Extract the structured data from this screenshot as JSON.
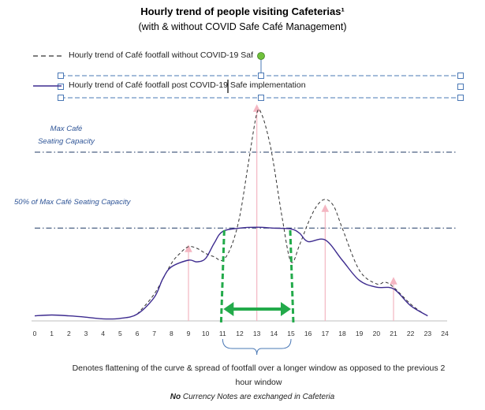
{
  "chart_data": {
    "type": "line",
    "title": "Hourly trend of people visiting Cafeterias¹",
    "subtitle": "(with & without COVID Safe Café Management)",
    "xlabel": "",
    "ylabel": "",
    "x": [
      0,
      1,
      2,
      3,
      4,
      5,
      6,
      7,
      8,
      9,
      10,
      11,
      12,
      13,
      14,
      15,
      16,
      17,
      18,
      19,
      20,
      21,
      22,
      23,
      24
    ],
    "xticks": [
      "0",
      "1",
      "2",
      "3",
      "4",
      "5",
      "6",
      "7",
      "8",
      "9",
      "10",
      "11",
      "12",
      "13",
      "14",
      "15",
      "16",
      "17",
      "18",
      "19",
      "20",
      "21",
      "22",
      "23",
      "24"
    ],
    "series": [
      {
        "name": "Hourly trend of Café footfall without  COVID-19 Saf",
        "style": "dashed",
        "color": "#333333",
        "points": [
          [
            6,
            0.04
          ],
          [
            7,
            0.16
          ],
          [
            8,
            0.34
          ],
          [
            8.5,
            0.4
          ],
          [
            9,
            0.44
          ],
          [
            9.5,
            0.43
          ],
          [
            10,
            0.4
          ],
          [
            10.5,
            0.38
          ],
          [
            11,
            0.36
          ],
          [
            11.5,
            0.44
          ],
          [
            12,
            0.62
          ],
          [
            12.5,
            0.93
          ],
          [
            13,
            1.23
          ],
          [
            13.3,
            1.22
          ],
          [
            13.7,
            1.08
          ],
          [
            14,
            0.92
          ],
          [
            14.5,
            0.6
          ],
          [
            15,
            0.35
          ],
          [
            15.5,
            0.45
          ],
          [
            16,
            0.58
          ],
          [
            16.5,
            0.68
          ],
          [
            17,
            0.72
          ],
          [
            17.5,
            0.68
          ],
          [
            18,
            0.55
          ],
          [
            19,
            0.3
          ],
          [
            20,
            0.22
          ],
          [
            20.5,
            0.23
          ],
          [
            21,
            0.2
          ],
          [
            22,
            0.1
          ],
          [
            22.8,
            0.04
          ]
        ]
      },
      {
        "name": "Hourly trend of Café footfall post COVID-19 Safe implementation",
        "style": "solid",
        "color": "#3d2b8f",
        "points": [
          [
            0,
            0.03
          ],
          [
            1,
            0.035
          ],
          [
            2,
            0.03
          ],
          [
            3,
            0.022
          ],
          [
            4,
            0.012
          ],
          [
            5,
            0.015
          ],
          [
            6,
            0.04
          ],
          [
            7,
            0.14
          ],
          [
            7.5,
            0.25
          ],
          [
            8,
            0.32
          ],
          [
            9,
            0.36
          ],
          [
            9.5,
            0.35
          ],
          [
            10,
            0.37
          ],
          [
            10.5,
            0.46
          ],
          [
            11,
            0.53
          ],
          [
            12,
            0.55
          ],
          [
            13,
            0.555
          ],
          [
            14,
            0.55
          ],
          [
            15,
            0.545
          ],
          [
            15.5,
            0.52
          ],
          [
            16,
            0.47
          ],
          [
            17,
            0.48
          ],
          [
            18,
            0.36
          ],
          [
            19,
            0.24
          ],
          [
            20,
            0.2
          ],
          [
            21,
            0.19
          ],
          [
            22,
            0.09
          ],
          [
            23,
            0.03
          ]
        ]
      }
    ],
    "reference_lines": [
      {
        "label_line1": "Max Café",
        "label_line2": "Seating Capacity",
        "y": 1.0
      },
      {
        "label": "50% of Max Café Seating Capacity",
        "y": 0.55
      }
    ],
    "markers": [
      9,
      13,
      17,
      21
    ],
    "window": {
      "start": 11,
      "end": 15
    },
    "ylim": [
      0,
      1.32
    ],
    "xlim": [
      0,
      24
    ],
    "grid": false,
    "legend_placement": "top-left",
    "annotation_line1": "Denotes flattening of the curve & spread of footfall over a longer window as opposed to the previous 2",
    "annotation_line2": "hour window",
    "footnote_bold": "No",
    "footnote_rest": " Currency Notes are exchanged  in Cafeteria",
    "colors": {
      "accent_green": "#22aa4a",
      "marker_pink": "#f4b6c2",
      "reference_blue": "#1f3864",
      "selection_blue": "#4a78b5",
      "handle_green": "#70c13b"
    }
  }
}
